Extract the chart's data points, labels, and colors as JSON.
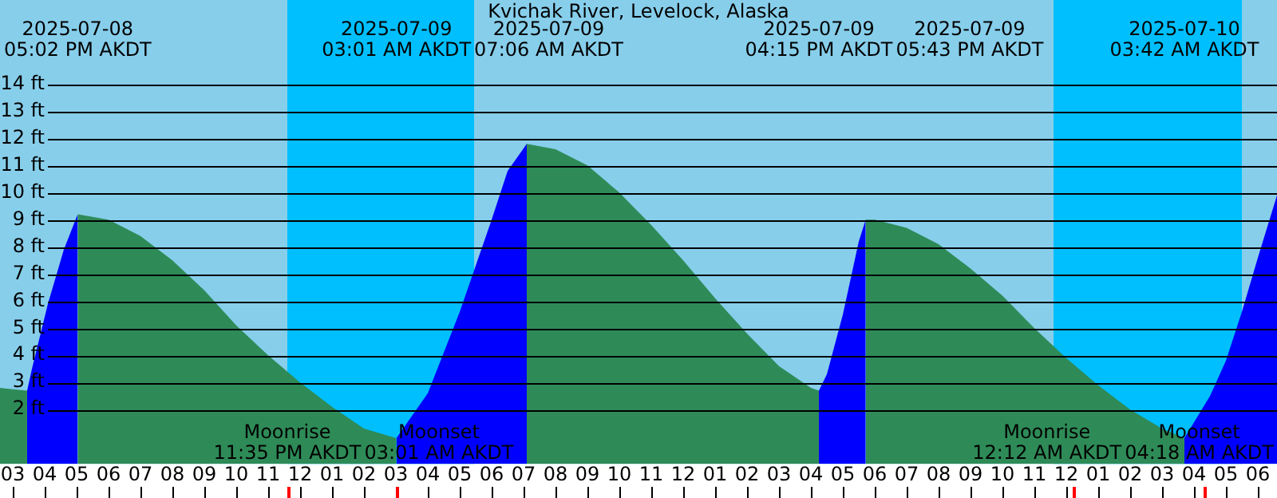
{
  "chart_data": {
    "type": "area",
    "title": "Kvichak River, Levelock, Alaska",
    "marker": "none",
    "grid": "y",
    "xlim": [
      "2025-07-08T14:36",
      "2025-07-10T06:36"
    ],
    "ylim": [
      0,
      17.1
    ],
    "xticks": [
      {
        "value": "2025-07-08T15:00",
        "label": "03"
      },
      {
        "value": "2025-07-08T16:00",
        "label": "04"
      },
      {
        "value": "2025-07-08T17:00",
        "label": "05"
      },
      {
        "value": "2025-07-08T18:00",
        "label": "06"
      },
      {
        "value": "2025-07-08T19:00",
        "label": "07"
      },
      {
        "value": "2025-07-08T20:00",
        "label": "08"
      },
      {
        "value": "2025-07-08T21:00",
        "label": "09"
      },
      {
        "value": "2025-07-08T22:00",
        "label": "10"
      },
      {
        "value": "2025-07-08T23:00",
        "label": "11"
      },
      {
        "value": "2025-07-09T00:00",
        "label": "12"
      },
      {
        "value": "2025-07-09T01:00",
        "label": "01"
      },
      {
        "value": "2025-07-09T02:00",
        "label": "02"
      },
      {
        "value": "2025-07-09T03:00",
        "label": "03"
      },
      {
        "value": "2025-07-09T04:00",
        "label": "04"
      },
      {
        "value": "2025-07-09T05:00",
        "label": "05"
      },
      {
        "value": "2025-07-09T06:00",
        "label": "06"
      },
      {
        "value": "2025-07-09T07:00",
        "label": "07"
      },
      {
        "value": "2025-07-09T08:00",
        "label": "08"
      },
      {
        "value": "2025-07-09T09:00",
        "label": "09"
      },
      {
        "value": "2025-07-09T10:00",
        "label": "10"
      },
      {
        "value": "2025-07-09T11:00",
        "label": "11"
      },
      {
        "value": "2025-07-09T12:00",
        "label": "12"
      },
      {
        "value": "2025-07-09T13:00",
        "label": "01"
      },
      {
        "value": "2025-07-09T14:00",
        "label": "02"
      },
      {
        "value": "2025-07-09T15:00",
        "label": "03"
      },
      {
        "value": "2025-07-09T16:00",
        "label": "04"
      },
      {
        "value": "2025-07-09T17:00",
        "label": "05"
      },
      {
        "value": "2025-07-09T18:00",
        "label": "06"
      },
      {
        "value": "2025-07-09T19:00",
        "label": "07"
      },
      {
        "value": "2025-07-09T20:00",
        "label": "08"
      },
      {
        "value": "2025-07-09T21:00",
        "label": "09"
      },
      {
        "value": "2025-07-09T22:00",
        "label": "10"
      },
      {
        "value": "2025-07-09T23:00",
        "label": "11"
      },
      {
        "value": "2025-07-10T00:00",
        "label": "12"
      },
      {
        "value": "2025-07-10T01:00",
        "label": "01"
      },
      {
        "value": "2025-07-10T02:00",
        "label": "02"
      },
      {
        "value": "2025-07-10T03:00",
        "label": "03"
      },
      {
        "value": "2025-07-10T04:00",
        "label": "04"
      },
      {
        "value": "2025-07-10T05:00",
        "label": "05"
      },
      {
        "value": "2025-07-10T06:00",
        "label": "06"
      }
    ],
    "yticks": [
      {
        "value": 2,
        "label": "2 ft"
      },
      {
        "value": 3,
        "label": "3 ft"
      },
      {
        "value": 4,
        "label": "4 ft"
      },
      {
        "value": 5,
        "label": "5 ft"
      },
      {
        "value": 6,
        "label": "6 ft"
      },
      {
        "value": 7,
        "label": "7 ft"
      },
      {
        "value": 8,
        "label": "8 ft"
      },
      {
        "value": 9,
        "label": "9 ft"
      },
      {
        "value": 10,
        "label": "10 ft"
      },
      {
        "value": 11,
        "label": "11 ft"
      },
      {
        "value": 12,
        "label": "12 ft"
      },
      {
        "value": 13,
        "label": "13 ft"
      },
      {
        "value": 14,
        "label": "14 ft"
      }
    ],
    "series": [
      {
        "color": "#2e8b57",
        "x": [
          "2025-07-08T14:36",
          "2025-07-08T15:00",
          "2025-07-08T15:27"
        ],
        "values": [
          2.8,
          2.75,
          2.7
        ]
      },
      {
        "color": "#0000ff",
        "x": [
          "2025-07-08T15:27",
          "2025-07-08T15:36",
          "2025-07-08T16:06",
          "2025-07-08T16:36",
          "2025-07-08T17:02"
        ],
        "values": [
          2.7,
          3.5,
          5.9,
          7.9,
          9.2
        ]
      },
      {
        "color": "#2e8b57",
        "x": [
          "2025-07-08T17:02",
          "2025-07-08T18:00",
          "2025-07-08T19:00",
          "2025-07-08T20:00",
          "2025-07-08T21:00",
          "2025-07-08T22:00",
          "2025-07-08T23:00",
          "2025-07-09T00:00",
          "2025-07-09T01:00",
          "2025-07-09T02:00",
          "2025-07-09T03:01"
        ],
        "values": [
          9.2,
          9.0,
          8.4,
          7.5,
          6.4,
          5.1,
          4.0,
          3.0,
          2.1,
          1.3,
          0.95
        ]
      },
      {
        "color": "#0000ff",
        "x": [
          "2025-07-09T03:01",
          "2025-07-09T04:00",
          "2025-07-09T05:00",
          "2025-07-09T06:00",
          "2025-07-09T06:30",
          "2025-07-09T07:06"
        ],
        "values": [
          0.95,
          2.6,
          5.6,
          9.0,
          10.8,
          11.8
        ]
      },
      {
        "color": "#2e8b57",
        "x": [
          "2025-07-09T07:06",
          "2025-07-09T08:00",
          "2025-07-09T09:00",
          "2025-07-09T10:00",
          "2025-07-09T11:00",
          "2025-07-09T12:00",
          "2025-07-09T13:00",
          "2025-07-09T14:00",
          "2025-07-09T15:00",
          "2025-07-09T16:00",
          "2025-07-09T16:15"
        ],
        "values": [
          11.8,
          11.6,
          11.0,
          10.0,
          8.8,
          7.5,
          6.1,
          4.8,
          3.6,
          2.8,
          2.7
        ]
      },
      {
        "color": "#0000ff",
        "x": [
          "2025-07-09T16:15",
          "2025-07-09T16:30",
          "2025-07-09T17:00",
          "2025-07-09T17:30",
          "2025-07-09T17:43"
        ],
        "values": [
          2.7,
          3.3,
          5.5,
          8.2,
          9.0
        ]
      },
      {
        "color": "#2e8b57",
        "x": [
          "2025-07-09T17:43",
          "2025-07-09T18:00",
          "2025-07-09T19:00",
          "2025-07-09T20:00",
          "2025-07-09T21:00",
          "2025-07-09T22:00",
          "2025-07-09T23:00",
          "2025-07-10T00:00",
          "2025-07-10T01:00",
          "2025-07-10T02:00",
          "2025-07-10T03:00",
          "2025-07-10T03:42"
        ],
        "values": [
          9.0,
          9.0,
          8.7,
          8.1,
          7.2,
          6.2,
          5.0,
          3.9,
          2.9,
          2.0,
          1.3,
          0.95
        ]
      },
      {
        "color": "#0000ff",
        "x": [
          "2025-07-10T03:42",
          "2025-07-10T04:30",
          "2025-07-10T05:00",
          "2025-07-10T05:30",
          "2025-07-10T06:00",
          "2025-07-10T06:36"
        ],
        "values": [
          0.95,
          2.5,
          3.8,
          5.6,
          7.6,
          9.9
        ]
      }
    ],
    "bands": [
      {
        "axis": "x",
        "from": "2025-07-08T23:36",
        "to": "2025-07-09T05:27",
        "color": "#00bfff"
      },
      {
        "axis": "x",
        "from": "2025-07-09T23:36",
        "to": "2025-07-10T05:30",
        "color": "#00bfff"
      }
    ],
    "ref_lines": [
      {
        "axis": "x",
        "value": "2025-07-08T23:35",
        "label": "Moonrise\n11:35 PM AKDT",
        "color": "#ff0000"
      },
      {
        "axis": "x",
        "value": "2025-07-09T03:01",
        "label": "Moonset\n03:01 AM AKDT",
        "color": "#ff0000"
      },
      {
        "axis": "x",
        "value": "2025-07-10T00:12",
        "label": "Moonrise\n12:12 AM AKDT",
        "color": "#ff0000"
      },
      {
        "axis": "x",
        "value": "2025-07-10T04:18",
        "label": "Moonset\n04:18 AM AKDT",
        "color": "#ff0000"
      }
    ],
    "annotations": [
      "2025-07-08\n05:02 PM AKDT",
      "2025-07-09\n03:01 AM AKDT",
      "2025-07-09\n07:06 AM AKDT",
      "2025-07-09\n04:15 PM AKDT",
      "2025-07-09\n05:43 PM AKDT",
      "2025-07-10\n03:42 AM AKDT"
    ]
  }
}
